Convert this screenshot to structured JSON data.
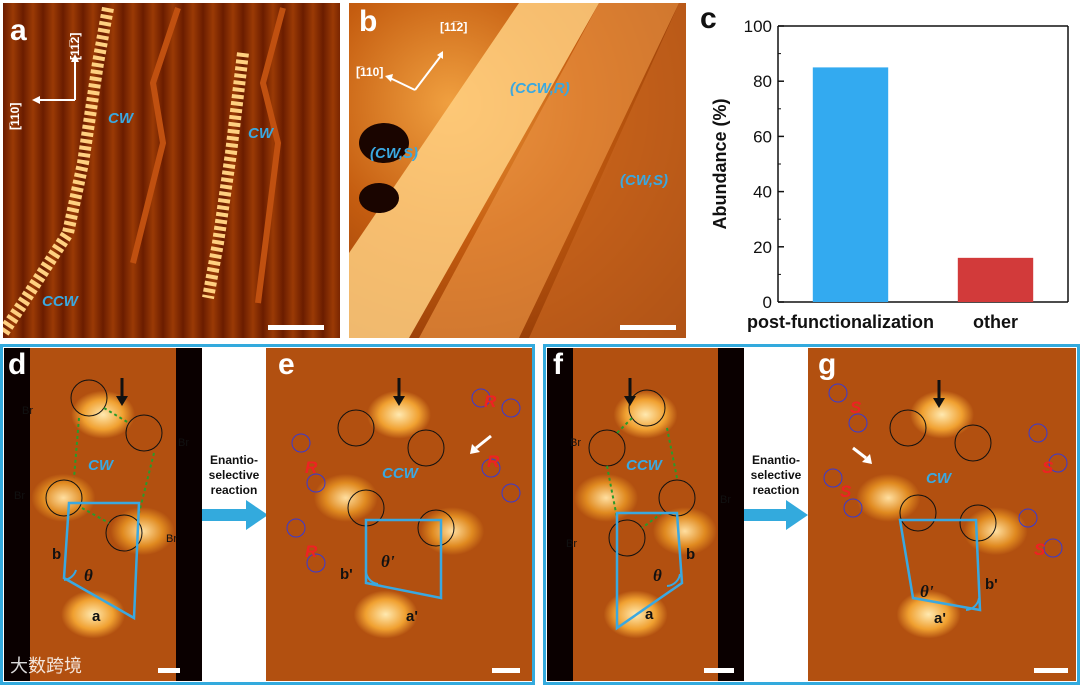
{
  "panels": {
    "a": {
      "label": "a",
      "dir1": "[11̅2]",
      "dir2": "[̅110]",
      "cw1": "CW",
      "cw2": "CW",
      "ccw": "CCW"
    },
    "b": {
      "label": "b",
      "dir1": "[11̅2]",
      "dir2": "[̅110]",
      "ccw_r": "(CCW,R)",
      "cw_s1": "(CW,S)",
      "cw_s2": "(CW,S)"
    },
    "c": {
      "label": "c"
    },
    "d": {
      "label": "d",
      "cw": "CW",
      "theta": "θ",
      "a": "a",
      "b": "b",
      "br": "Br"
    },
    "e": {
      "label": "e",
      "ccw": "CCW",
      "theta": "θ'",
      "a": "a'",
      "b": "b'",
      "r": "R"
    },
    "f": {
      "label": "f",
      "ccw": "CCW",
      "theta": "θ",
      "a": "a",
      "b": "b",
      "br": "Br"
    },
    "g": {
      "label": "g",
      "cw": "CW",
      "theta": "θ'",
      "a": "a'",
      "b": "b'",
      "s": "S"
    }
  },
  "arrows": {
    "left": "Enantio-\nselective\nreaction",
    "right": "Enantio-\nselective\nreaction"
  },
  "watermark": "大数跨境",
  "chart_data": {
    "type": "bar",
    "categories": [
      "post-functionalization",
      "other"
    ],
    "values": [
      85,
      16
    ],
    "colors": [
      "#33aaf0",
      "#d23a3a"
    ],
    "xlabel": "",
    "ylabel": "Abundance (%)",
    "ylim": [
      0,
      100
    ],
    "yticks": [
      0,
      20,
      40,
      60,
      80,
      100
    ],
    "grid": false
  }
}
